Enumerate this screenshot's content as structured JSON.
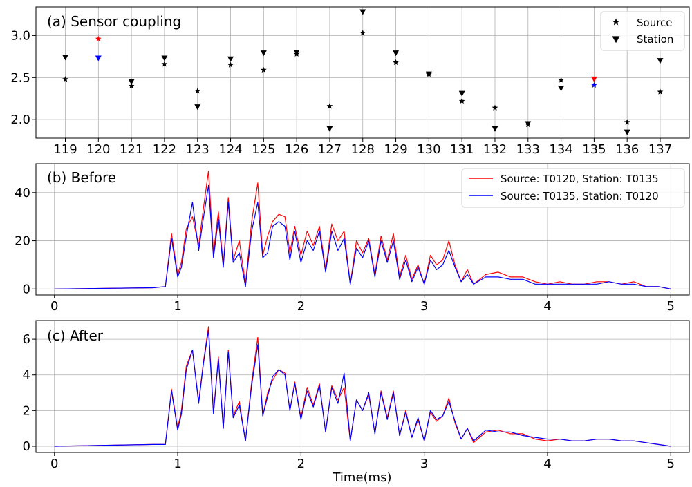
{
  "chart_data": [
    {
      "type": "scatter",
      "title": "(a) Sensor coupling",
      "categories": [
        "119",
        "120",
        "121",
        "122",
        "123",
        "124",
        "125",
        "126",
        "127",
        "128",
        "129",
        "130",
        "131",
        "132",
        "133",
        "134",
        "135",
        "136",
        "137"
      ],
      "ylim": [
        1.78,
        3.34
      ],
      "yticks": [
        "2.0",
        "2.5",
        "3.0"
      ],
      "yticks_values": [
        2.0,
        2.5,
        3.0
      ],
      "grid": true,
      "legend_position": "top-right",
      "series": [
        {
          "name": "Source",
          "marker": "star",
          "values": [
            2.48,
            2.96,
            2.4,
            2.66,
            2.34,
            2.65,
            2.59,
            2.78,
            2.16,
            3.03,
            2.68,
            2.54,
            2.22,
            2.14,
            1.94,
            2.47,
            2.41,
            1.97,
            2.33
          ]
        },
        {
          "name": "Station",
          "marker": "triangle-down",
          "values": [
            2.74,
            2.73,
            2.45,
            2.73,
            2.15,
            2.72,
            2.79,
            2.8,
            1.89,
            3.28,
            2.79,
            2.54,
            2.31,
            1.89,
            1.95,
            2.37,
            2.48,
            1.85,
            2.7
          ]
        }
      ],
      "highlight": {
        "source_station": "135",
        "station_source": "120",
        "color_a": "#ff0000",
        "color_b": "#0000ff"
      }
    },
    {
      "type": "line",
      "title": "(b) Before",
      "xlim": [
        -0.15,
        5.15
      ],
      "ylim": [
        -2.5,
        52
      ],
      "xticks": [
        "0",
        "1",
        "2",
        "3",
        "4",
        "5"
      ],
      "xticks_values": [
        0,
        1,
        2,
        3,
        4,
        5
      ],
      "yticks": [
        "0",
        "20",
        "40"
      ],
      "yticks_values": [
        0,
        20,
        40
      ],
      "grid": true,
      "legend_position": "top-right",
      "series": [
        {
          "name": "Source: T0120, Station: T0135",
          "color": "#ff0000",
          "x": [
            0,
            0.8,
            0.9,
            0.95,
            1.0,
            1.03,
            1.07,
            1.12,
            1.17,
            1.21,
            1.25,
            1.29,
            1.33,
            1.37,
            1.41,
            1.45,
            1.5,
            1.55,
            1.6,
            1.65,
            1.69,
            1.73,
            1.77,
            1.82,
            1.87,
            1.91,
            1.95,
            2.0,
            2.05,
            2.1,
            2.15,
            2.2,
            2.25,
            2.3,
            2.35,
            2.4,
            2.45,
            2.5,
            2.55,
            2.6,
            2.65,
            2.7,
            2.75,
            2.8,
            2.85,
            2.9,
            2.95,
            3.0,
            3.05,
            3.1,
            3.15,
            3.2,
            3.25,
            3.3,
            3.35,
            3.4,
            3.5,
            3.6,
            3.7,
            3.8,
            3.9,
            4.0,
            4.1,
            4.2,
            4.3,
            4.4,
            4.5,
            4.6,
            4.7,
            4.8,
            4.9,
            5.0
          ],
          "values": [
            0,
            0.5,
            1,
            23,
            6,
            11,
            25,
            30,
            18,
            34,
            49,
            15,
            32,
            10,
            38,
            12,
            20,
            2,
            28,
            44,
            14,
            22,
            28,
            31,
            30,
            15,
            26,
            14,
            24,
            18,
            26,
            8,
            27,
            20,
            24,
            2,
            20,
            15,
            21,
            6,
            22,
            12,
            23,
            5,
            14,
            4,
            10,
            2,
            14,
            10,
            12,
            20,
            10,
            3,
            8,
            2,
            6,
            7,
            5,
            5,
            3,
            2,
            3,
            2,
            2,
            3,
            3,
            2,
            3,
            1,
            1,
            0
          ]
        },
        {
          "name": "Source: T0135, Station: T0120",
          "color": "#0000ff",
          "x": [
            0,
            0.8,
            0.9,
            0.95,
            1.0,
            1.03,
            1.07,
            1.12,
            1.17,
            1.21,
            1.25,
            1.29,
            1.33,
            1.37,
            1.41,
            1.45,
            1.5,
            1.55,
            1.6,
            1.65,
            1.69,
            1.73,
            1.77,
            1.82,
            1.87,
            1.91,
            1.95,
            2.0,
            2.05,
            2.1,
            2.15,
            2.2,
            2.25,
            2.3,
            2.35,
            2.4,
            2.45,
            2.5,
            2.55,
            2.6,
            2.65,
            2.7,
            2.75,
            2.8,
            2.85,
            2.9,
            2.95,
            3.0,
            3.05,
            3.1,
            3.15,
            3.2,
            3.25,
            3.3,
            3.35,
            3.4,
            3.5,
            3.6,
            3.7,
            3.8,
            3.9,
            4.0,
            4.1,
            4.2,
            4.3,
            4.4,
            4.5,
            4.6,
            4.7,
            4.8,
            4.9,
            5.0
          ],
          "values": [
            0,
            0.5,
            1,
            21,
            5,
            9,
            22,
            36,
            16,
            30,
            43,
            13,
            29,
            9,
            36,
            11,
            15,
            1,
            24,
            36,
            13,
            15,
            26,
            28,
            26,
            12,
            24,
            11,
            20,
            16,
            24,
            7,
            24,
            16,
            21,
            2,
            17,
            13,
            20,
            5,
            20,
            11,
            20,
            4,
            12,
            3,
            9,
            2,
            12,
            8,
            10,
            16,
            9,
            3,
            6,
            2,
            5,
            5,
            4,
            4,
            2,
            2,
            2,
            2,
            2,
            2,
            3,
            2,
            2,
            1,
            1,
            0
          ]
        }
      ]
    },
    {
      "type": "line",
      "title": "(c) After",
      "xlabel": "Time(ms)",
      "xlim": [
        -0.15,
        5.15
      ],
      "ylim": [
        -0.35,
        7.05
      ],
      "xticks": [
        "0",
        "1",
        "2",
        "3",
        "4",
        "5"
      ],
      "xticks_values": [
        0,
        1,
        2,
        3,
        4,
        5
      ],
      "yticks": [
        "0",
        "2",
        "4",
        "6"
      ],
      "yticks_values": [
        0,
        2,
        4,
        6
      ],
      "grid": true,
      "series": [
        {
          "name": "",
          "color": "#ff0000",
          "x": [
            0,
            0.8,
            0.9,
            0.95,
            1.0,
            1.03,
            1.07,
            1.12,
            1.17,
            1.21,
            1.25,
            1.29,
            1.33,
            1.37,
            1.41,
            1.45,
            1.5,
            1.55,
            1.6,
            1.65,
            1.69,
            1.73,
            1.77,
            1.82,
            1.87,
            1.91,
            1.95,
            2.0,
            2.05,
            2.1,
            2.15,
            2.2,
            2.25,
            2.3,
            2.35,
            2.4,
            2.45,
            2.5,
            2.55,
            2.6,
            2.65,
            2.7,
            2.75,
            2.8,
            2.85,
            2.9,
            2.95,
            3.0,
            3.05,
            3.1,
            3.15,
            3.2,
            3.25,
            3.3,
            3.35,
            3.4,
            3.5,
            3.6,
            3.7,
            3.8,
            3.9,
            4.0,
            4.1,
            4.2,
            4.3,
            4.4,
            4.5,
            4.6,
            4.7,
            4.8,
            4.9,
            5.0
          ],
          "values": [
            0,
            0.1,
            0.1,
            3.2,
            1.0,
            2.0,
            4.5,
            5.4,
            2.5,
            4.8,
            6.7,
            1.9,
            5.0,
            1.0,
            5.4,
            1.7,
            2.5,
            0.3,
            3.6,
            6.1,
            1.7,
            3.0,
            3.7,
            4.3,
            4.1,
            2.0,
            3.6,
            1.6,
            3.3,
            2.3,
            3.5,
            0.8,
            3.4,
            2.6,
            3.3,
            0.3,
            2.6,
            2.0,
            2.9,
            0.7,
            3.1,
            1.6,
            3.1,
            0.6,
            2.0,
            0.5,
            1.5,
            0.3,
            1.9,
            1.4,
            1.7,
            2.7,
            1.3,
            0.4,
            1.0,
            0.2,
            0.8,
            0.9,
            0.7,
            0.7,
            0.4,
            0.3,
            0.4,
            0.3,
            0.3,
            0.4,
            0.4,
            0.3,
            0.3,
            0.2,
            0.1,
            0
          ]
        },
        {
          "name": "",
          "color": "#0000ff",
          "x": [
            0,
            0.8,
            0.9,
            0.95,
            1.0,
            1.03,
            1.07,
            1.12,
            1.17,
            1.21,
            1.25,
            1.29,
            1.33,
            1.37,
            1.41,
            1.45,
            1.5,
            1.55,
            1.6,
            1.65,
            1.69,
            1.73,
            1.77,
            1.82,
            1.87,
            1.91,
            1.95,
            2.0,
            2.05,
            2.1,
            2.15,
            2.2,
            2.25,
            2.3,
            2.35,
            2.4,
            2.45,
            2.5,
            2.55,
            2.6,
            2.65,
            2.7,
            2.75,
            2.8,
            2.85,
            2.9,
            2.95,
            3.0,
            3.05,
            3.1,
            3.15,
            3.2,
            3.25,
            3.3,
            3.35,
            3.4,
            3.5,
            3.6,
            3.7,
            3.8,
            3.9,
            4.0,
            4.1,
            4.2,
            4.3,
            4.4,
            4.5,
            4.6,
            4.7,
            4.8,
            4.9,
            5.0
          ],
          "values": [
            0,
            0.1,
            0.1,
            3.1,
            0.9,
            1.8,
            4.3,
            5.4,
            2.4,
            4.7,
            6.5,
            1.8,
            4.9,
            1.0,
            5.3,
            1.6,
            2.3,
            0.3,
            3.4,
            5.7,
            1.7,
            2.8,
            3.9,
            4.3,
            4.0,
            2.0,
            3.5,
            1.5,
            3.1,
            2.2,
            3.4,
            0.8,
            3.3,
            2.4,
            4.1,
            0.3,
            2.6,
            2.0,
            3.0,
            0.7,
            3.0,
            1.5,
            3.0,
            0.6,
            1.9,
            0.5,
            1.6,
            0.3,
            2.0,
            1.5,
            1.7,
            2.5,
            1.4,
            0.4,
            1.0,
            0.3,
            0.9,
            0.8,
            0.8,
            0.6,
            0.5,
            0.4,
            0.4,
            0.3,
            0.3,
            0.4,
            0.4,
            0.3,
            0.3,
            0.2,
            0.1,
            0
          ]
        }
      ]
    }
  ]
}
